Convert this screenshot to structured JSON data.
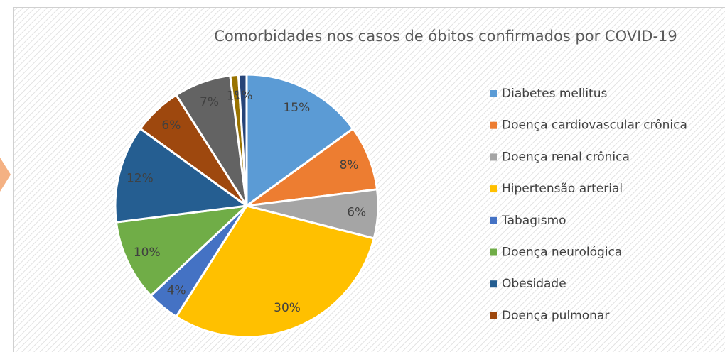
{
  "chart_data": {
    "type": "pie",
    "title": "Comorbidades nos casos de óbitos confirmados por COVID-19",
    "categories": [
      "Diabetes mellitus",
      "Doença cardiovascular crônica",
      "Doença renal crônica",
      "Hipertensão arterial",
      "Tabagismo",
      "Doença neurológica",
      "Obesidade",
      "Doença pulmonar",
      null,
      null,
      null
    ],
    "values": [
      15,
      8,
      6,
      30,
      4,
      10,
      12,
      6,
      7,
      1,
      1
    ],
    "value_labels": [
      "15%",
      "8%",
      "6%",
      "30%",
      "4%",
      "10%",
      "12%",
      "6%",
      "7%",
      "1%",
      "1%"
    ],
    "colors": [
      "#5b9bd5",
      "#ed7d31",
      "#a5a5a5",
      "#ffc000",
      "#4472c4",
      "#70ad47",
      "#255e91",
      "#9e480e",
      "#636363",
      "#997300",
      "#264478"
    ],
    "legend": "right"
  }
}
